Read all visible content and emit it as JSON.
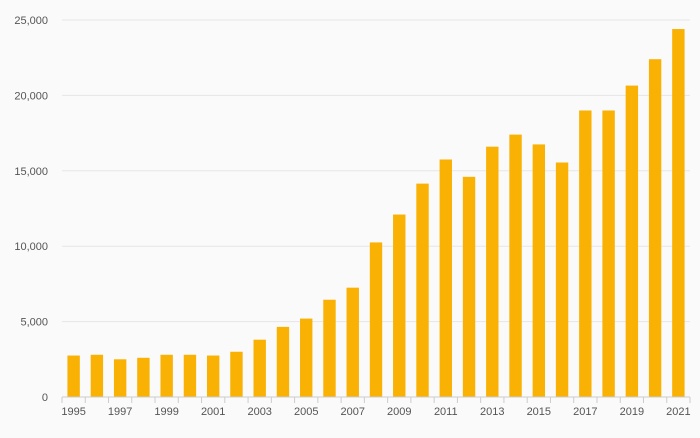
{
  "chart_data": {
    "type": "bar",
    "title": "",
    "xlabel": "",
    "ylabel": "",
    "categories": [
      "1995",
      "1996",
      "1997",
      "1998",
      "1999",
      "2000",
      "2001",
      "2002",
      "2003",
      "2004",
      "2005",
      "2006",
      "2007",
      "2008",
      "2009",
      "2010",
      "2011",
      "2012",
      "2013",
      "2014",
      "2015",
      "2016",
      "2017",
      "2018",
      "2019",
      "2020",
      "2021"
    ],
    "x_tick_labels": [
      "1995",
      "1997",
      "1999",
      "2001",
      "2003",
      "2005",
      "2007",
      "2009",
      "2011",
      "2013",
      "2015",
      "2017",
      "2019",
      "2021"
    ],
    "values": [
      2750,
      2800,
      2500,
      2600,
      2800,
      2800,
      2750,
      3000,
      3800,
      4650,
      5200,
      6450,
      7250,
      10250,
      12100,
      14150,
      15750,
      14600,
      16600,
      17400,
      16750,
      15550,
      19000,
      19000,
      20650,
      22400,
      24400
    ],
    "ylim": [
      0,
      25000
    ],
    "y_ticks": [
      0,
      5000,
      10000,
      15000,
      20000,
      25000
    ],
    "y_tick_labels": [
      "0",
      "5,000",
      "10,000",
      "15,000",
      "20,000",
      "25,000"
    ],
    "grid": true,
    "bar_color": "#F9B104"
  }
}
